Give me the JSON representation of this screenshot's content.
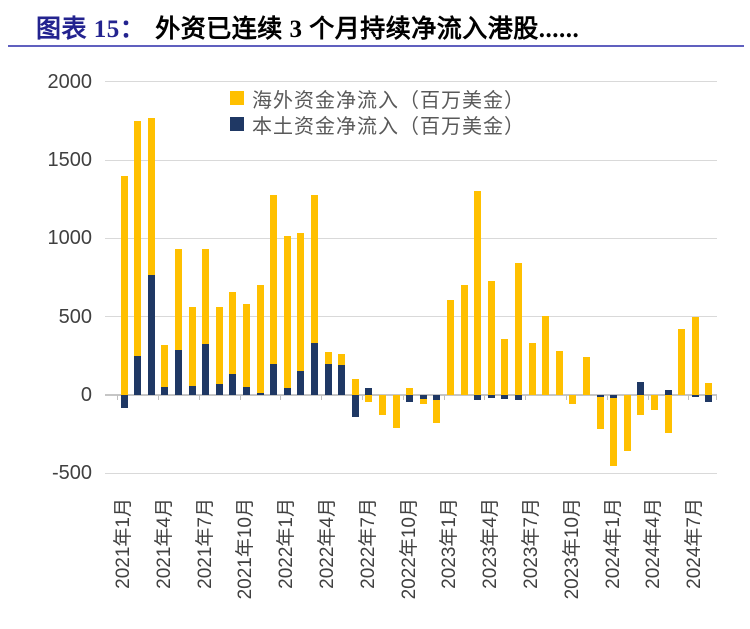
{
  "header": {
    "figure_label": "图表 15：",
    "figure_title": "外资已连续 3 个月持续净流入港股......"
  },
  "colors": {
    "title_accent": "#23238F",
    "title_text": "#000000",
    "rule": "#6060BF",
    "gridline": "#D9D9D9",
    "axis_line": "#C6C6C6",
    "tick": "#BFBFBF",
    "axis_label": "#404040",
    "legend_text": "#595959",
    "overseas": "#FFC000",
    "local": "#1F3864"
  },
  "chart_data": {
    "type": "bar",
    "stacked": true,
    "stack_order_note": "local series stacks from zero first, overseas stacks outside it; negatives stack downward",
    "unit": "百万美金",
    "categories": [
      "2021年1月",
      "2021年2月",
      "2021年3月",
      "2021年4月",
      "2021年5月",
      "2021年6月",
      "2021年7月",
      "2021年8月",
      "2021年9月",
      "2021年10月",
      "2021年11月",
      "2021年12月",
      "2022年1月",
      "2022年2月",
      "2022年3月",
      "2022年4月",
      "2022年5月",
      "2022年6月",
      "2022年7月",
      "2022年8月",
      "2022年9月",
      "2022年10月",
      "2022年11月",
      "2022年12月",
      "2023年1月",
      "2023年2月",
      "2023年3月",
      "2023年4月",
      "2023年5月",
      "2023年6月",
      "2023年7月",
      "2023年8月",
      "2023年9月",
      "2023年10月",
      "2023年11月",
      "2023年12月",
      "2024年1月",
      "2024年2月",
      "2024年3月",
      "2024年4月",
      "2024年5月",
      "2024年6月",
      "2024年7月",
      "2024年8月"
    ],
    "x_tick_labels": [
      "2021年1月",
      "2021年4月",
      "2021年7月",
      "2021年10月",
      "2022年1月",
      "2022年4月",
      "2022年7月",
      "2022年10月",
      "2023年1月",
      "2023年4月",
      "2023年7月",
      "2023年10月",
      "2024年1月",
      "2024年4月",
      "2024年7月"
    ],
    "series": [
      {
        "name": "海外资金净流入（百万美金）",
        "color": "#FFC000",
        "values": [
          1400,
          1500,
          1005,
          270,
          650,
          505,
          605,
          490,
          525,
          530,
          690,
          1075,
          970,
          880,
          940,
          80,
          70,
          105,
          -45,
          -125,
          -210,
          45,
          -30,
          -150,
          605,
          700,
          1300,
          730,
          360,
          840,
          330,
          505,
          280,
          -60,
          245,
          -200,
          -435,
          -360,
          -130,
          -95,
          -245,
          420,
          500,
          75
        ]
      },
      {
        "name": "本土资金净流入（百万美金）",
        "color": "#1F3864",
        "values": [
          -80,
          250,
          765,
          50,
          285,
          55,
          325,
          70,
          135,
          50,
          15,
          200,
          45,
          155,
          335,
          195,
          190,
          -140,
          45,
          0,
          0,
          -45,
          -25,
          -30,
          0,
          0,
          -30,
          -20,
          -25,
          -35,
          0,
          0,
          0,
          0,
          0,
          -15,
          -20,
          0,
          85,
          0,
          30,
          0,
          -10,
          -45
        ]
      }
    ],
    "ylim": [
      -500,
      2000
    ],
    "y_ticks": [
      2000,
      1500,
      1000,
      500,
      0,
      -500
    ],
    "grid": true,
    "legend_position": "top-center"
  }
}
